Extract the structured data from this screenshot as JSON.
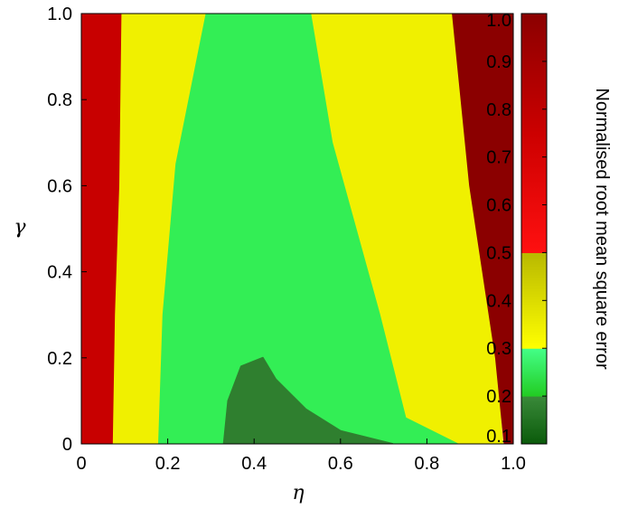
{
  "chart_data": {
    "type": "heatmap",
    "title": "",
    "xlabel": "η",
    "ylabel": "γ",
    "xlim": [
      0,
      1
    ],
    "ylim": [
      0,
      1
    ],
    "x_ticks": [
      "0",
      "0.2",
      "0.4",
      "0.6",
      "0.8",
      "1.0"
    ],
    "y_ticks": [
      "0",
      "0.2",
      "0.4",
      "0.6",
      "0.8",
      "1.0"
    ],
    "colorbar": {
      "label": "Normalised root mean square error",
      "range": [
        0.1,
        1.0
      ],
      "ticks": [
        "0.1",
        "0.2",
        "0.3",
        "0.4",
        "0.5",
        "0.6",
        "0.7",
        "0.8",
        "0.9",
        "1.0"
      ],
      "bands": [
        {
          "from": 0.1,
          "to": 0.2,
          "color_low": "#0a5a0a",
          "color_high": "#3a8a3a"
        },
        {
          "from": 0.2,
          "to": 0.3,
          "color_low": "#22cc22",
          "color_high": "#44ff88"
        },
        {
          "from": 0.3,
          "to": 0.5,
          "color_low": "#ffff00",
          "color_high": "#b8b800"
        },
        {
          "from": 0.5,
          "to": 0.75,
          "color_low": "#ff1010",
          "color_high": "#cc0000"
        },
        {
          "from": 0.75,
          "to": 1.0,
          "color_low": "#cc0000",
          "color_high": "#8b0000"
        }
      ]
    },
    "regions": [
      {
        "name": "error-above-0.5-low-eta",
        "level": 0.9,
        "color": "#c80000",
        "boundary": [
          [
            0,
            0
          ],
          [
            0,
            1
          ],
          [
            0.095,
            1
          ],
          [
            0.09,
            0.6
          ],
          [
            0.08,
            0.3
          ],
          [
            0.075,
            0
          ]
        ]
      },
      {
        "name": "error-0.3-0.5",
        "level": 0.4,
        "color": "#f0f000",
        "boundary": [
          [
            0.075,
            0
          ],
          [
            0.08,
            0.3
          ],
          [
            0.09,
            0.6
          ],
          [
            0.095,
            1
          ],
          [
            0.88,
            1
          ],
          [
            0.9,
            0.7
          ],
          [
            0.95,
            0.3
          ],
          [
            0.975,
            0
          ],
          [
            0.075,
            0
          ]
        ]
      },
      {
        "name": "error-0.2-0.3",
        "level": 0.25,
        "color": "#33ee55",
        "boundary": [
          [
            0.18,
            0
          ],
          [
            0.19,
            0.3
          ],
          [
            0.22,
            0.65
          ],
          [
            0.29,
            1
          ],
          [
            0.53,
            1
          ],
          [
            0.58,
            0.7
          ],
          [
            0.69,
            0.3
          ],
          [
            0.75,
            0.06
          ],
          [
            0.87,
            0
          ]
        ]
      },
      {
        "name": "error-below-0.2",
        "level": 0.15,
        "color": "#2f7f2f",
        "boundary": [
          [
            0.33,
            0
          ],
          [
            0.34,
            0.1
          ],
          [
            0.37,
            0.18
          ],
          [
            0.42,
            0.2
          ],
          [
            0.45,
            0.15
          ],
          [
            0.52,
            0.08
          ],
          [
            0.6,
            0.03
          ],
          [
            0.72,
            0
          ]
        ]
      },
      {
        "name": "error-above-0.5-high-eta",
        "level": 0.95,
        "color": "#8b0000",
        "boundary": [
          [
            0.86,
            1
          ],
          [
            1,
            1
          ],
          [
            1,
            0
          ],
          [
            0.98,
            0
          ],
          [
            0.96,
            0.2
          ],
          [
            0.9,
            0.6
          ],
          [
            0.86,
            1
          ]
        ]
      }
    ],
    "grid": false,
    "legend": "colorbar-right"
  }
}
